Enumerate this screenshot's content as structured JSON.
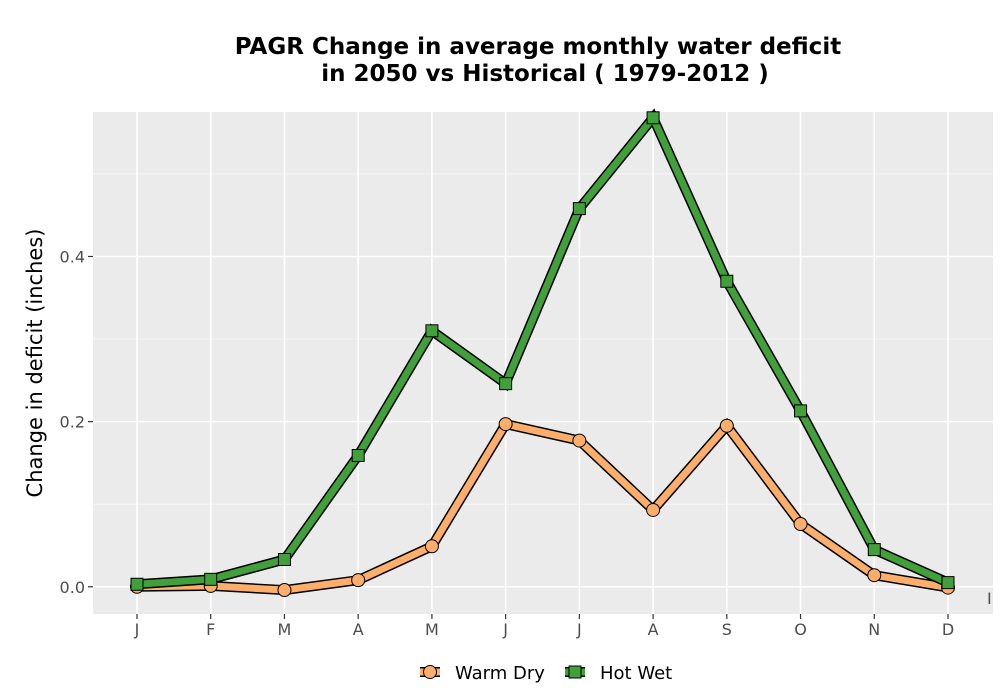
{
  "chart_data": {
    "type": "line",
    "title_line1": "PAGR  Change in average monthly water deficit",
    "title_line2": "in 2050 vs Historical ( 1979-2012 )",
    "xlabel": "",
    "ylabel": "Change in deficit (inches)",
    "categories": [
      "J",
      "F",
      "M",
      "A",
      "M",
      "J",
      "J",
      "A",
      "S",
      "O",
      "N",
      "D"
    ],
    "yticks": [
      0.0,
      0.2,
      0.4
    ],
    "ytick_labels": [
      "0.0",
      "0.2",
      "0.4"
    ],
    "ylim": [
      -0.033,
      0.575
    ],
    "grid": true,
    "legend_position": "bottom",
    "stray_mark": "I",
    "series": [
      {
        "name": "Warm Dry",
        "marker": "circle",
        "color": "#FDAE6B",
        "values": [
          0.0,
          0.001,
          -0.004,
          0.008,
          0.049,
          0.197,
          0.177,
          0.093,
          0.195,
          0.076,
          0.014,
          -0.001
        ]
      },
      {
        "name": "Hot Wet",
        "marker": "square",
        "color": "#41A03A",
        "values": [
          0.003,
          0.009,
          0.033,
          0.159,
          0.31,
          0.246,
          0.458,
          0.568,
          0.37,
          0.213,
          0.045,
          0.005
        ]
      }
    ]
  }
}
